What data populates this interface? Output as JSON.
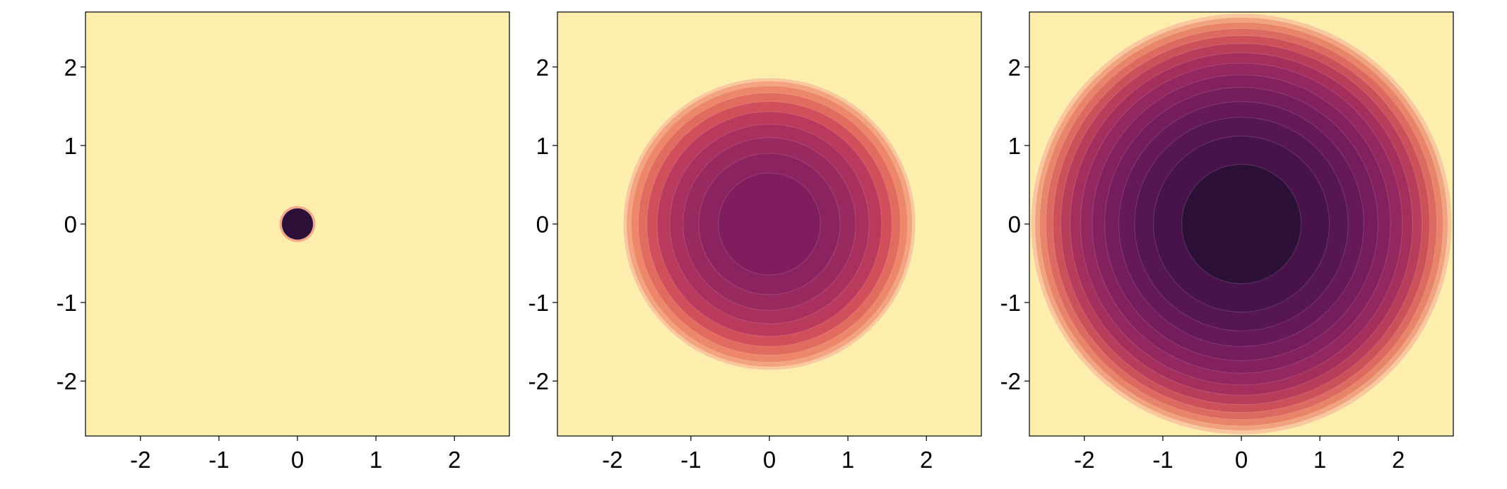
{
  "chart_data": [
    {
      "type": "heatmap",
      "panel": 1,
      "xlim": [
        -2.7,
        2.7
      ],
      "ylim": [
        -2.7,
        2.7
      ],
      "x_ticks": [
        -2,
        -1,
        0,
        1,
        2
      ],
      "y_ticks": [
        -2,
        -1,
        0,
        1,
        2
      ],
      "x_tick_labels": [
        "-2",
        "-1",
        "0",
        "1",
        "2"
      ],
      "y_tick_labels": [
        "-2",
        "-1",
        "0",
        "1",
        "2"
      ],
      "grid": false,
      "background_color": "#fdeeae",
      "contour_rings": [
        {
          "radius": 0.23,
          "color": "#f6a986"
        },
        {
          "radius": 0.2,
          "color": "#2d1038"
        }
      ]
    },
    {
      "type": "heatmap",
      "panel": 2,
      "xlim": [
        -2.7,
        2.7
      ],
      "ylim": [
        -2.7,
        2.7
      ],
      "x_ticks": [
        -2,
        -1,
        0,
        1,
        2
      ],
      "y_ticks": [
        -2,
        -1,
        0,
        1,
        2
      ],
      "x_tick_labels": [
        "-2",
        "-1",
        "0",
        "1",
        "2"
      ],
      "y_tick_labels": [
        "-2",
        "-1",
        "0",
        "1",
        "2"
      ],
      "grid": false,
      "background_color": "#fdeeae",
      "contour_rings": [
        {
          "radius": 1.86,
          "color": "#f9c89e"
        },
        {
          "radius": 1.82,
          "color": "#f3a37f"
        },
        {
          "radius": 1.76,
          "color": "#ec8769"
        },
        {
          "radius": 1.67,
          "color": "#e26b5f"
        },
        {
          "radius": 1.56,
          "color": "#d14f5a"
        },
        {
          "radius": 1.43,
          "color": "#b93a5c"
        },
        {
          "radius": 1.27,
          "color": "#a82f5e"
        },
        {
          "radius": 1.1,
          "color": "#992a5f"
        },
        {
          "radius": 0.9,
          "color": "#8b2360"
        },
        {
          "radius": 0.65,
          "color": "#7f1d5f"
        }
      ]
    },
    {
      "type": "heatmap",
      "panel": 3,
      "xlim": [
        -2.7,
        2.7
      ],
      "ylim": [
        -2.7,
        2.7
      ],
      "x_ticks": [
        -2,
        -1,
        0,
        1,
        2
      ],
      "y_ticks": [
        -2,
        -1,
        0,
        1,
        2
      ],
      "x_tick_labels": [
        "-2",
        "-1",
        "0",
        "1",
        "2"
      ],
      "y_tick_labels": [
        "-2",
        "-1",
        "0",
        "1",
        "2"
      ],
      "grid": false,
      "background_color": "#fdeeae",
      "contour_rings": [
        {
          "radius": 2.68,
          "color": "#f9c89e"
        },
        {
          "radius": 2.63,
          "color": "#f1a27f"
        },
        {
          "radius": 2.57,
          "color": "#e8846a"
        },
        {
          "radius": 2.49,
          "color": "#dd6a60"
        },
        {
          "radius": 2.4,
          "color": "#cc5059"
        },
        {
          "radius": 2.3,
          "color": "#b83d5b"
        },
        {
          "radius": 2.18,
          "color": "#a42f5d"
        },
        {
          "radius": 2.05,
          "color": "#93275f"
        },
        {
          "radius": 1.9,
          "color": "#83215f"
        },
        {
          "radius": 1.74,
          "color": "#741c5c"
        },
        {
          "radius": 1.56,
          "color": "#651958"
        },
        {
          "radius": 1.36,
          "color": "#561652"
        },
        {
          "radius": 1.12,
          "color": "#47134a"
        },
        {
          "radius": 0.76,
          "color": "#2d1038"
        }
      ]
    }
  ]
}
